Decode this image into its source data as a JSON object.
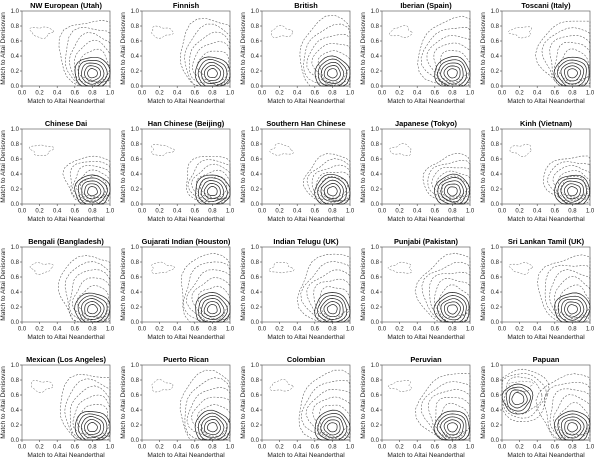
{
  "chart_data": {
    "type": "contour",
    "layout": {
      "rows": 4,
      "cols": 5
    },
    "panels": [
      {
        "title": "NW European (Utah)"
      },
      {
        "title": "Finnish"
      },
      {
        "title": "British"
      },
      {
        "title": "Iberian (Spain)"
      },
      {
        "title": "Toscani (Italy)"
      },
      {
        "title": "Chinese Dai"
      },
      {
        "title": "Han Chinese (Beijing)"
      },
      {
        "title": "Southern Han Chinese"
      },
      {
        "title": "Japanese (Tokyo)"
      },
      {
        "title": "Kinh (Vietnam)"
      },
      {
        "title": "Bengali (Bangladesh)"
      },
      {
        "title": "Gujarati Indian (Houston)"
      },
      {
        "title": "Indian Telugu (UK)"
      },
      {
        "title": "Punjabi (Pakistan)"
      },
      {
        "title": "Sri Lankan Tamil (UK)"
      },
      {
        "title": "Mexican (Los Angeles)"
      },
      {
        "title": "Puerto Rican"
      },
      {
        "title": "Colombian"
      },
      {
        "title": "Peruvian"
      },
      {
        "title": "Papuan"
      }
    ],
    "xlabel": "Match to Altai Neanderthal",
    "ylabel": "Match to Altai Denisovan",
    "xlim": [
      0.0,
      1.0
    ],
    "ylim": [
      0.0,
      1.0
    ],
    "xticks": [
      "0.0",
      "0.2",
      "0.4",
      "0.6",
      "0.8",
      "1.0"
    ],
    "yticks": [
      "0.0",
      "0.2",
      "0.4",
      "0.6",
      "0.8",
      "1.0"
    ],
    "contour_levels_solid": [
      1,
      2,
      4,
      6,
      8
    ],
    "contour_levels_dashed": [
      0.1,
      0.2,
      0.3,
      0.4,
      0.5
    ],
    "main_peak": {
      "x": 0.8,
      "y": 0.15
    },
    "papuan_second_peak": {
      "x": 0.18,
      "y": 0.55
    },
    "grid": false
  }
}
